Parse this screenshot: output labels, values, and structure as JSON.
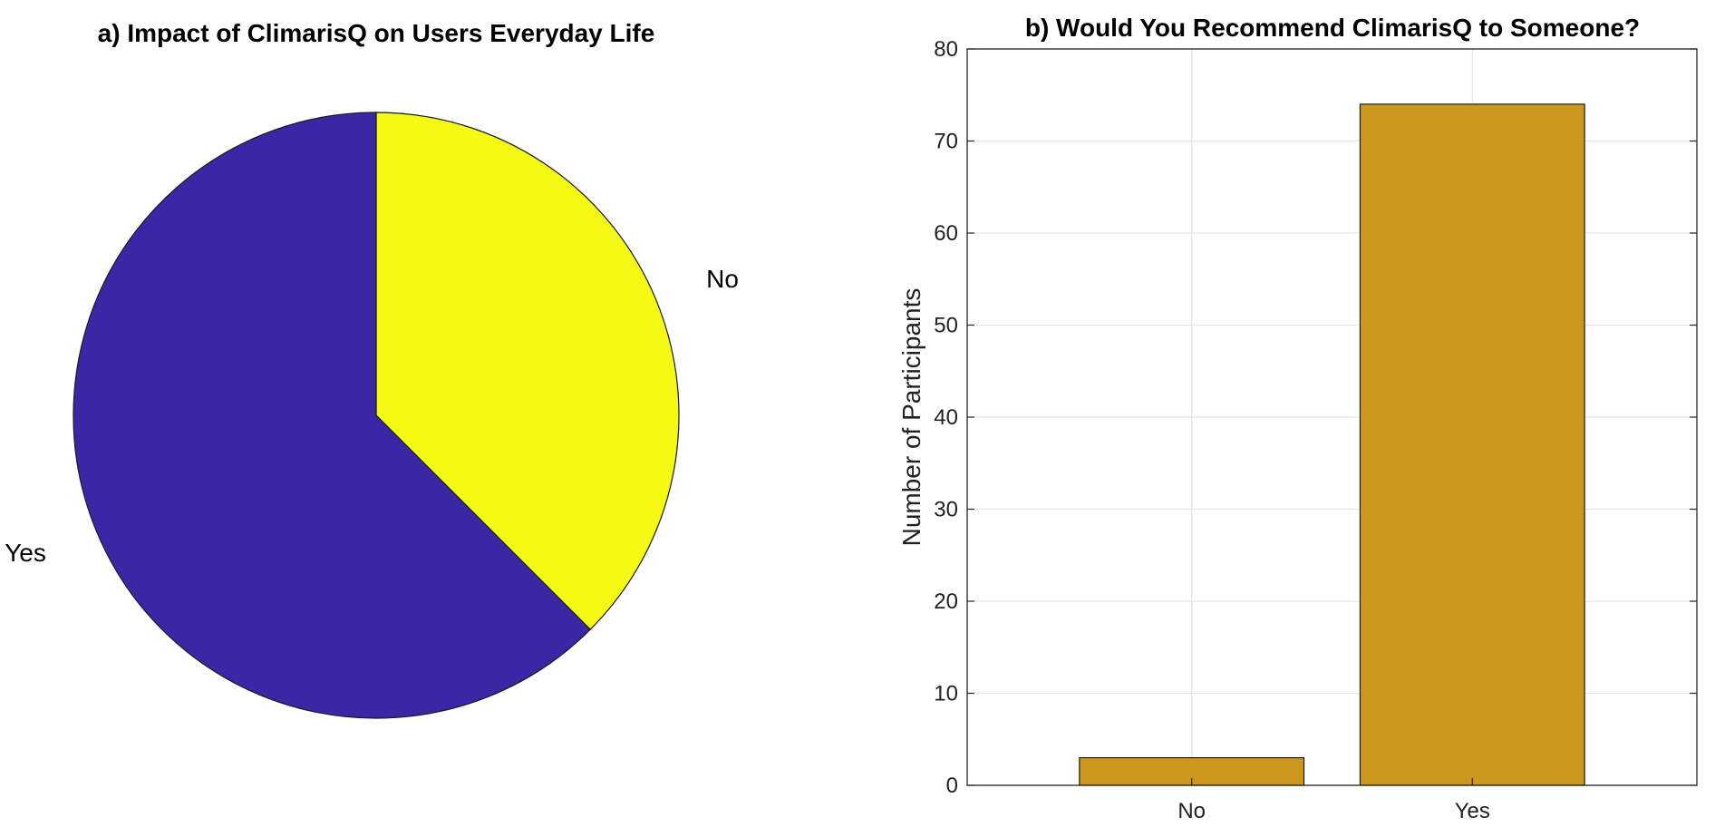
{
  "chart_data": [
    {
      "type": "pie",
      "title": "a) Impact of ClimarisQ on Users Everyday Life",
      "slices": [
        {
          "label": "No",
          "value": 37.5,
          "color": "#f5fa14"
        },
        {
          "label": "Yes",
          "value": 62.5,
          "color": "#3b27a6"
        }
      ]
    },
    {
      "type": "bar",
      "title": "b) Would You Recommend ClimarisQ to Someone?",
      "categories": [
        "No",
        "Yes"
      ],
      "values": [
        3,
        74
      ],
      "xlabel": "",
      "ylabel": "Number of Participants",
      "ylim": [
        0,
        80
      ],
      "yticks": [
        0,
        10,
        20,
        30,
        40,
        50,
        60,
        70,
        80
      ],
      "grid": true,
      "bar_color": "#cc981c"
    }
  ]
}
